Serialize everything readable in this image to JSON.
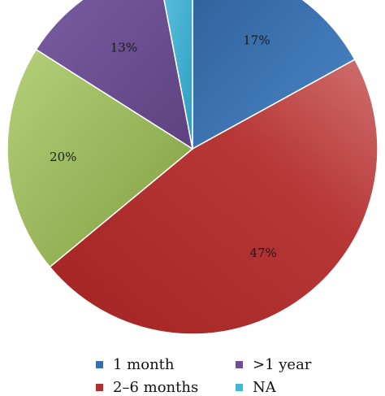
{
  "chart_data": {
    "type": "pie",
    "categories": [
      "1 month",
      "2–6 months",
      ">1 year",
      "NA"
    ],
    "slices": [
      {
        "name": "1 month",
        "value": 17,
        "label": "17%",
        "color": "#3a6fae"
      },
      {
        "name": "2–6 months",
        "value": 47,
        "label": "47%",
        "color": "#b03030"
      },
      {
        "name": "",
        "value": 20,
        "label": "20%",
        "color": "#98b957"
      },
      {
        "name": ">1 year",
        "value": 13,
        "label": "13%",
        "color": "#6d4f91"
      },
      {
        "name": "NA",
        "value": 3,
        "label": "",
        "color": "#45b5d6"
      }
    ],
    "legend": {
      "placement": "bottom",
      "entries": [
        {
          "label": "1 month",
          "color": "#3a6fae"
        },
        {
          "label": ">1 year",
          "color": "#6d4f91"
        },
        {
          "label": "2–6 months",
          "color": "#b03030"
        },
        {
          "label": "NA",
          "color": "#45b5d6"
        }
      ]
    }
  }
}
